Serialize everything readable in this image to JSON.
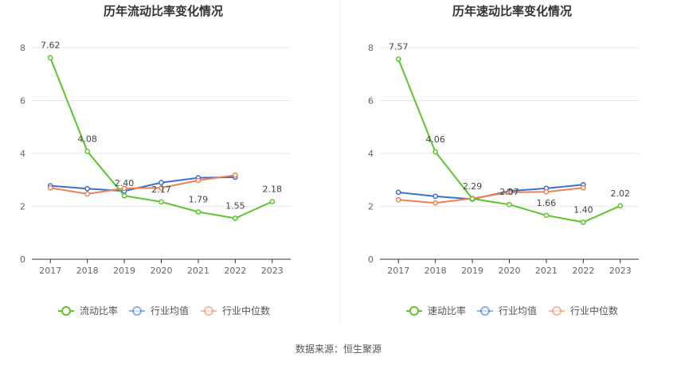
{
  "colors": {
    "main": "#5cc52c",
    "avg": "#3b6fd1",
    "median": "#ef8055",
    "grid": "#e6e8ee",
    "axis": "#333333"
  },
  "source_text": "数据来源：恒生聚源",
  "chart_data": [
    {
      "type": "line",
      "title": "历年流动比率变化情况",
      "categories": [
        "2017",
        "2018",
        "2019",
        "2020",
        "2021",
        "2022",
        "2023"
      ],
      "ylim": [
        0,
        8
      ],
      "yticks": [
        "0",
        "2",
        "4",
        "6",
        "8"
      ],
      "grid": true,
      "legend_position": "bottom",
      "series": [
        {
          "name": "流动比率",
          "color_key": "main",
          "values": [
            7.62,
            4.08,
            2.4,
            2.17,
            1.79,
            1.55,
            2.18
          ],
          "labels": [
            "7.62",
            "4.08",
            "2.40",
            "2.17",
            "1.79",
            "1.55",
            "2.18"
          ]
        },
        {
          "name": "行业均值",
          "color_key": "avg",
          "values": [
            2.78,
            2.67,
            2.58,
            2.9,
            3.08,
            3.1,
            null
          ]
        },
        {
          "name": "行业中位数",
          "color_key": "median",
          "values": [
            2.7,
            2.47,
            2.68,
            2.7,
            2.98,
            3.18,
            null
          ]
        }
      ]
    },
    {
      "type": "line",
      "title": "历年速动比率变化情况",
      "categories": [
        "2017",
        "2018",
        "2019",
        "2020",
        "2021",
        "2022",
        "2023"
      ],
      "ylim": [
        0,
        8
      ],
      "yticks": [
        "0",
        "2",
        "4",
        "6",
        "8"
      ],
      "grid": true,
      "legend_position": "bottom",
      "series": [
        {
          "name": "速动比率",
          "color_key": "main",
          "values": [
            7.57,
            4.06,
            2.29,
            2.07,
            1.66,
            1.4,
            2.02
          ],
          "labels": [
            "7.57",
            "4.06",
            "2.29",
            "2.07",
            "1.66",
            "1.40",
            "2.02"
          ]
        },
        {
          "name": "行业均值",
          "color_key": "avg",
          "values": [
            2.53,
            2.38,
            2.27,
            2.58,
            2.68,
            2.82,
            null
          ]
        },
        {
          "name": "行业中位数",
          "color_key": "median",
          "values": [
            2.25,
            2.13,
            2.3,
            2.53,
            2.55,
            2.7,
            null
          ]
        }
      ]
    }
  ]
}
